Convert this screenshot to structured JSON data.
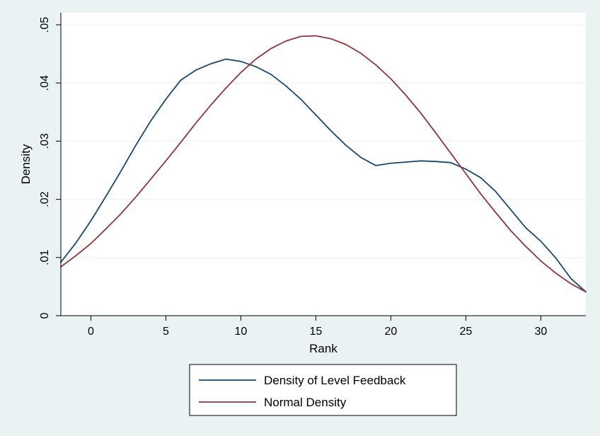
{
  "chart_data": {
    "type": "line",
    "xlabel": "Rank",
    "ylabel": "Density",
    "xlim": [
      -2,
      33
    ],
    "ylim": [
      0,
      0.05
    ],
    "x_ticks": [
      0,
      5,
      10,
      15,
      20,
      25,
      30
    ],
    "x_tick_labels": [
      "0",
      "5",
      "10",
      "15",
      "20",
      "25",
      "30"
    ],
    "y_ticks": [
      0,
      0.01,
      0.02,
      0.03,
      0.04,
      0.05
    ],
    "y_tick_labels": [
      "0",
      ".01",
      ".02",
      ".03",
      ".04",
      ".05"
    ],
    "grid": true,
    "legend_position": "bottom",
    "series": [
      {
        "name": "Density of Level Feedback",
        "color": "#1a476f",
        "x": [
          -2,
          -1,
          0,
          1,
          2,
          3,
          4,
          5,
          6,
          7,
          8,
          9,
          10,
          11,
          12,
          13,
          14,
          15,
          16,
          17,
          18,
          19,
          20,
          21,
          22,
          23,
          24,
          25,
          26,
          27,
          28,
          29,
          30,
          31,
          32,
          33
        ],
        "y": [
          0.0092,
          0.0125,
          0.0163,
          0.0205,
          0.0248,
          0.0293,
          0.0335,
          0.0372,
          0.0405,
          0.0422,
          0.0433,
          0.0441,
          0.0437,
          0.0428,
          0.0415,
          0.0395,
          0.0372,
          0.0345,
          0.0318,
          0.0293,
          0.0272,
          0.0258,
          0.0262,
          0.0264,
          0.0266,
          0.0265,
          0.0263,
          0.0252,
          0.0237,
          0.0213,
          0.0182,
          0.0151,
          0.0128,
          0.0099,
          0.0064,
          0.0041
        ]
      },
      {
        "name": "Normal Density",
        "color": "#90353b",
        "mean": 13.6,
        "sd": 8.3,
        "x": [
          -2,
          -1,
          0,
          1,
          2,
          3,
          4,
          5,
          6,
          7,
          8,
          9,
          10,
          11,
          12,
          13,
          14,
          15,
          16,
          17,
          18,
          19,
          20,
          21,
          22,
          23,
          24,
          25,
          26,
          27,
          28,
          29,
          30,
          31,
          32,
          33
        ],
        "y": [
          0.0084,
          0.0103,
          0.0124,
          0.0149,
          0.0175,
          0.0204,
          0.0235,
          0.0266,
          0.0298,
          0.0331,
          0.0362,
          0.0391,
          0.0418,
          0.0441,
          0.0459,
          0.0472,
          0.048,
          0.0481,
          0.0476,
          0.0466,
          0.0451,
          0.0431,
          0.0407,
          0.0379,
          0.0348,
          0.0314,
          0.0279,
          0.0244,
          0.0209,
          0.0177,
          0.0146,
          0.0119,
          0.0094,
          0.0073,
          0.0055,
          0.0041
        ]
      }
    ]
  }
}
